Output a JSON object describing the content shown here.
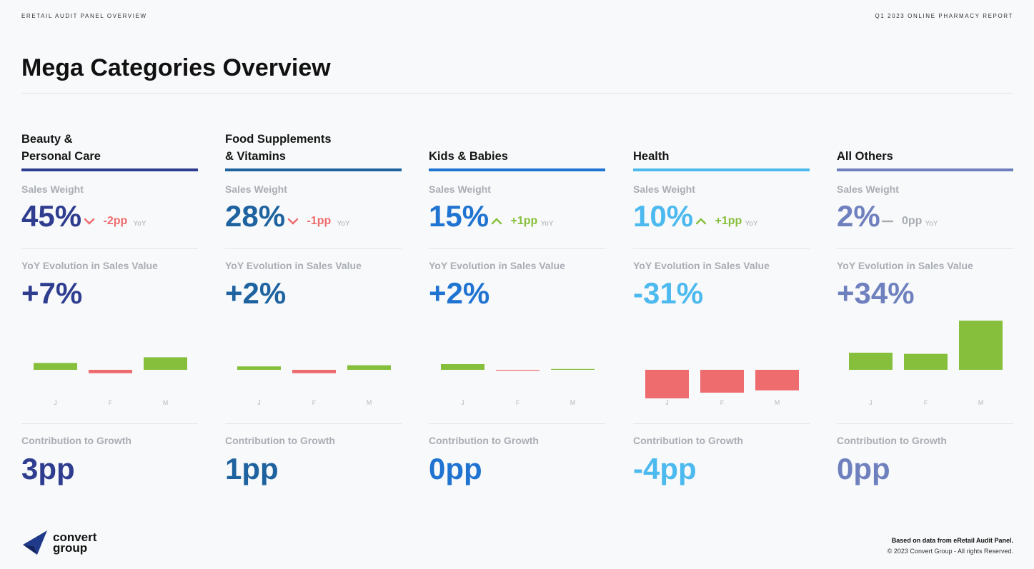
{
  "header": {
    "left_label": "ERETAIL AUDIT PANEL OVERVIEW",
    "right_label": "Q1 2023 ONLINE PHARMACY REPORT",
    "title": "Mega Categories Overview"
  },
  "labels": {
    "sales_weight": "Sales Weight",
    "yoy_evolution": "YoY Evolution in Sales Value",
    "contribution": "Contribution to Growth",
    "yoy": "YoY"
  },
  "colors": {
    "positive": "#86bf3c",
    "negative": "#ee6b6e",
    "neutral": "#a9adb4",
    "axis_text": "#b5b9bf"
  },
  "categories": [
    {
      "title": "Beauty &\nPersonal Care",
      "color": "#2e3d8f",
      "sales_weight": "45%",
      "weight_change": "-2pp",
      "weight_direction": "down",
      "yoy_evolution": "+7%",
      "contribution": "3pp"
    },
    {
      "title": "Food Supplements\n& Vitamins",
      "color": "#1e63a0",
      "sales_weight": "28%",
      "weight_change": "-1pp",
      "weight_direction": "down",
      "yoy_evolution": "+2%",
      "contribution": "1pp"
    },
    {
      "title": "Kids & Babies",
      "color": "#1f73d1",
      "sales_weight": "15%",
      "weight_change": "+1pp",
      "weight_direction": "up",
      "yoy_evolution": "+2%",
      "contribution": "0pp"
    },
    {
      "title": "Health",
      "color": "#4cb9ef",
      "sales_weight": "10%",
      "weight_change": "+1pp",
      "weight_direction": "up",
      "yoy_evolution": "-31%",
      "contribution": "-4pp"
    },
    {
      "title": "All Others",
      "color": "#6f80bf",
      "sales_weight": "2%",
      "weight_change": "0pp",
      "weight_direction": "flat",
      "yoy_evolution": "+34%",
      "contribution": "0pp"
    }
  ],
  "chart_data": [
    {
      "type": "bar",
      "categories": [
        "J",
        "F",
        "M"
      ],
      "values": [
        6,
        -3,
        11
      ],
      "ylim": [
        -40,
        40
      ],
      "grid": false
    },
    {
      "type": "bar",
      "categories": [
        "J",
        "F",
        "M"
      ],
      "values": [
        3,
        -3,
        4
      ],
      "ylim": [
        -40,
        40
      ],
      "grid": false
    },
    {
      "type": "bar",
      "categories": [
        "J",
        "F",
        "M"
      ],
      "values": [
        5,
        -0.5,
        0.5
      ],
      "ylim": [
        -40,
        40
      ],
      "grid": false
    },
    {
      "type": "bar",
      "categories": [
        "J",
        "F",
        "M"
      ],
      "values": [
        -25,
        -20,
        -18
      ],
      "ylim": [
        -40,
        40
      ],
      "grid": false
    },
    {
      "type": "bar",
      "categories": [
        "J",
        "F",
        "M"
      ],
      "values": [
        15,
        14,
        43
      ],
      "ylim": [
        -40,
        40
      ],
      "grid": false
    }
  ],
  "footer": {
    "logo_text": "convert\ngroup",
    "note": "Based on data from eRetail Audit Panel.",
    "copyright": "© 2023 Convert Group - All rights Reserved."
  }
}
